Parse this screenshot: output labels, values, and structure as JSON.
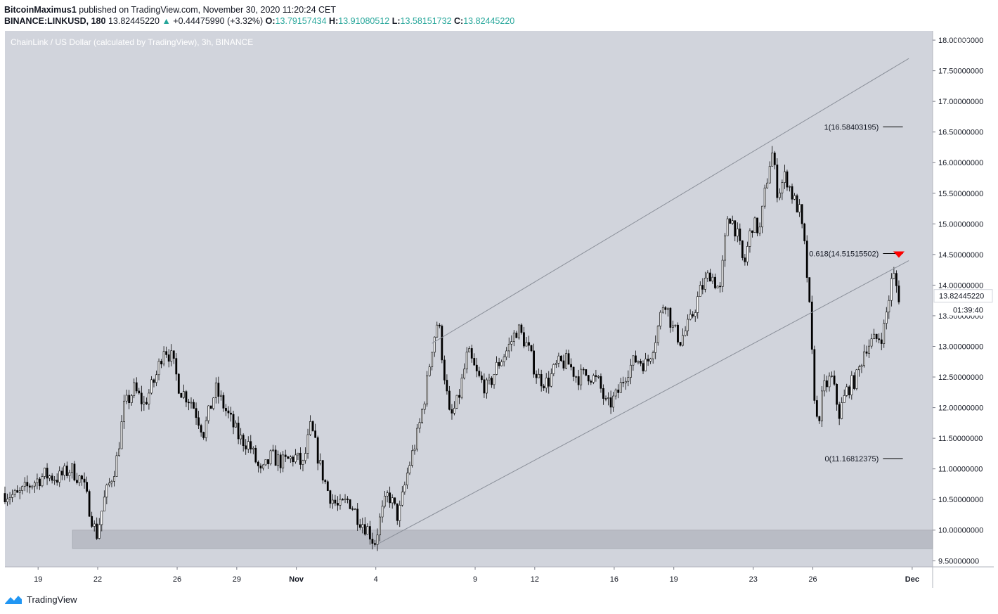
{
  "header": {
    "publisher": "BitcoinMaximus1",
    "published_text": "published on TradingView.com, November 30, 2020 11:20:24 CET",
    "symbol": "BINANCE:LINKUSD, 180",
    "last": "13.82445220",
    "change_arrow": "▲",
    "change": "+0.44475990 (+3.32%)",
    "o_label": "O:",
    "o": "13.79157434",
    "h_label": "H:",
    "h": "13.91080512",
    "l_label": "L:",
    "l": "13.58151732",
    "c_label": "C:",
    "c": "13.82445220"
  },
  "footer": {
    "brand": "TradingView",
    "logo_icon": "tradingview-logo-icon"
  },
  "colors": {
    "pane_bg": "#d1d4dc",
    "candle": "#000000",
    "channel_line": "#8a8f99",
    "support_zone": "#b2b5be",
    "fib_line": "#000000",
    "marker": "#ff0000"
  },
  "chart_data": {
    "type": "candlestick",
    "title": "ChainLink / US Dollar (calculated by TradingView), 3h, BINANCE",
    "currency": "USD",
    "ylim": [
      9.4,
      18.15
    ],
    "y_ticks": [
      "9.50000000",
      "10.00000000",
      "10.50000000",
      "11.00000000",
      "11.50000000",
      "12.00000000",
      "12.50000000",
      "13.00000000",
      "13.50000000",
      "14.00000000",
      "14.50000000",
      "15.00000000",
      "15.50000000",
      "16.00000000",
      "16.50000000",
      "17.00000000",
      "17.50000000",
      "18.00000000"
    ],
    "y_tick_values": [
      9.5,
      10.0,
      10.5,
      11.0,
      11.5,
      12.0,
      12.5,
      13.0,
      13.5,
      14.0,
      14.5,
      15.0,
      15.5,
      16.0,
      16.5,
      17.0,
      17.5,
      18.0
    ],
    "x_ticks": [
      "19",
      "22",
      "26",
      "29",
      "Nov",
      "4",
      "9",
      "12",
      "16",
      "19",
      "23",
      "26",
      "Dec"
    ],
    "x_tick_days": [
      18.67,
      21.67,
      25.67,
      28.67,
      31.67,
      35.67,
      40.67,
      43.67,
      47.67,
      50.67,
      54.67,
      57.67,
      62.67
    ],
    "x_range_days": [
      17.0,
      63.7
    ],
    "last_price_label": "13.82445220",
    "countdown": "01:39:40",
    "price_path": [
      [
        17.0,
        10.6
      ],
      [
        17.6,
        10.55
      ],
      [
        18.3,
        10.75
      ],
      [
        19.0,
        10.9
      ],
      [
        19.7,
        10.85
      ],
      [
        20.3,
        11.0
      ],
      [
        20.9,
        10.8
      ],
      [
        21.3,
        10.3
      ],
      [
        21.6,
        9.9
      ],
      [
        22.0,
        10.5
      ],
      [
        22.6,
        11.1
      ],
      [
        23.0,
        12.0
      ],
      [
        23.5,
        12.3
      ],
      [
        24.0,
        12.05
      ],
      [
        24.6,
        12.5
      ],
      [
        25.0,
        13.0
      ],
      [
        25.4,
        12.8
      ],
      [
        25.8,
        12.3
      ],
      [
        26.4,
        12.1
      ],
      [
        27.0,
        11.6
      ],
      [
        27.6,
        12.3
      ],
      [
        28.2,
        11.9
      ],
      [
        28.8,
        11.5
      ],
      [
        29.3,
        11.4
      ],
      [
        29.9,
        10.9
      ],
      [
        30.4,
        11.2
      ],
      [
        31.0,
        11.1
      ],
      [
        31.6,
        11.2
      ],
      [
        32.0,
        11.05
      ],
      [
        32.4,
        11.7
      ],
      [
        32.9,
        11.0
      ],
      [
        33.3,
        10.6
      ],
      [
        33.8,
        10.35
      ],
      [
        34.3,
        10.5
      ],
      [
        34.8,
        10.2
      ],
      [
        35.3,
        10.0
      ],
      [
        35.6,
        9.78
      ],
      [
        35.9,
        10.2
      ],
      [
        36.3,
        10.6
      ],
      [
        36.8,
        10.2
      ],
      [
        37.3,
        11.0
      ],
      [
        37.8,
        11.6
      ],
      [
        38.2,
        12.3
      ],
      [
        38.5,
        13.0
      ],
      [
        38.8,
        13.45
      ],
      [
        39.1,
        12.6
      ],
      [
        39.4,
        11.8
      ],
      [
        39.8,
        12.1
      ],
      [
        40.3,
        12.9
      ],
      [
        40.8,
        12.5
      ],
      [
        41.3,
        12.3
      ],
      [
        41.8,
        12.7
      ],
      [
        42.3,
        12.95
      ],
      [
        42.8,
        13.3
      ],
      [
        43.3,
        13.0
      ],
      [
        43.8,
        12.5
      ],
      [
        44.3,
        12.4
      ],
      [
        44.8,
        12.7
      ],
      [
        45.3,
        12.75
      ],
      [
        45.8,
        12.5
      ],
      [
        46.4,
        12.55
      ],
      [
        46.9,
        12.4
      ],
      [
        47.3,
        12.0
      ],
      [
        47.8,
        12.2
      ],
      [
        48.3,
        12.6
      ],
      [
        48.8,
        12.8
      ],
      [
        49.3,
        12.7
      ],
      [
        49.8,
        13.2
      ],
      [
        50.2,
        13.8
      ],
      [
        50.6,
        13.3
      ],
      [
        51.0,
        13.1
      ],
      [
        51.5,
        13.4
      ],
      [
        52.0,
        13.9
      ],
      [
        52.5,
        14.2
      ],
      [
        53.0,
        13.9
      ],
      [
        53.4,
        15.2
      ],
      [
        53.8,
        14.9
      ],
      [
        54.2,
        14.3
      ],
      [
        54.6,
        15.0
      ],
      [
        55.0,
        14.9
      ],
      [
        55.3,
        15.6
      ],
      [
        55.6,
        16.2
      ],
      [
        55.9,
        15.5
      ],
      [
        56.3,
        15.8
      ],
      [
        56.7,
        15.4
      ],
      [
        57.0,
        15.2
      ],
      [
        57.3,
        14.5
      ],
      [
        57.5,
        13.6
      ],
      [
        57.7,
        12.4
      ],
      [
        57.9,
        11.7
      ],
      [
        58.2,
        12.3
      ],
      [
        58.6,
        12.5
      ],
      [
        59.0,
        11.9
      ],
      [
        59.4,
        12.3
      ],
      [
        59.9,
        12.5
      ],
      [
        60.3,
        13.0
      ],
      [
        60.8,
        13.1
      ],
      [
        61.2,
        13.2
      ],
      [
        61.5,
        13.8
      ],
      [
        61.7,
        14.2
      ],
      [
        62.0,
        13.82
      ]
    ],
    "channel": {
      "upper": {
        "from": [
          38.5,
          13.05
        ],
        "to": [
          62.5,
          17.7
        ]
      },
      "lower": {
        "from": [
          35.8,
          9.78
        ],
        "to": [
          62.5,
          14.4
        ]
      }
    },
    "support_zone": {
      "from_day": 20.4,
      "to_day": 63.7,
      "low": 9.7,
      "high": 10.0
    },
    "fib_levels": [
      {
        "label": "1(16.58403195)",
        "value": 16.58403195
      },
      {
        "label": "0.618(14.51515502)",
        "value": 14.51515502
      },
      {
        "label": "0(11.16812375)",
        "value": 11.16812375
      }
    ],
    "fib_line_days": [
      61.2,
      62.2
    ],
    "resistance_marker": {
      "day": 62.0,
      "value": 14.51515502
    }
  }
}
